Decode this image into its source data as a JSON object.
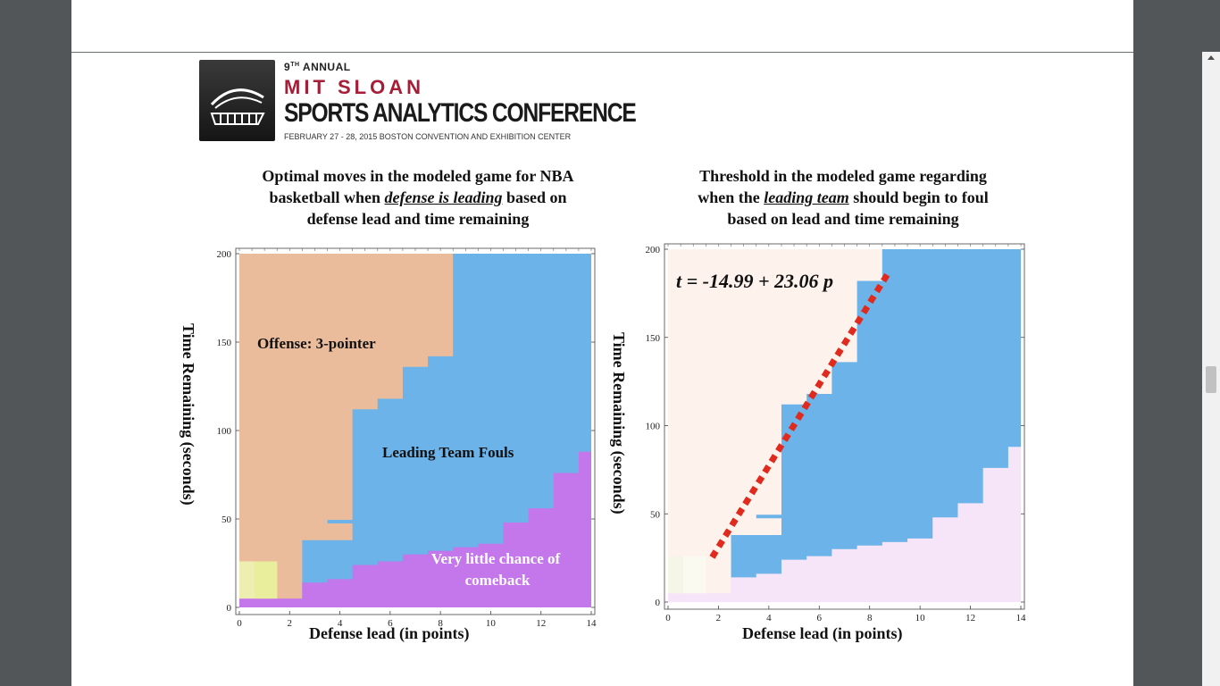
{
  "logo": {
    "edition_num": "9",
    "edition_sup": "TH",
    "edition_word": "ANNUAL",
    "line1": "MIT SLOAN",
    "line2": "SPORTS ANALYTICS CONFERENCE",
    "date_line": "FEBRUARY 27 - 28, 2015 BOSTON CONVENTION AND EXHIBITION CENTER"
  },
  "left_chart": {
    "title_line1": "Optimal moves in the modeled game for NBA",
    "title_line2_pre": "basketball when ",
    "title_line2_em": "defense is leading",
    "title_line2_post": " based on",
    "title_line3": "defense lead and time remaining",
    "region_labels": {
      "offense": "Offense: 3-pointer",
      "fouls": "Leading Team Fouls",
      "comeback1": "Very little chance of",
      "comeback2": "comeback"
    }
  },
  "right_chart": {
    "title_line1": "Threshold in the modeled game regarding",
    "title_line2_pre": "when the ",
    "title_line2_em": "leading team",
    "title_line2_post": " should begin to foul",
    "title_line3": "based on lead and time remaining",
    "equation": "t = -14.99 + 23.06 p"
  },
  "colors": {
    "offense": "#ebbc9c",
    "fouls": "#6cb3ea",
    "comeback": "#c476eb",
    "yellow": "#eeeeb0",
    "right_offense": "#fdf2ec",
    "right_comeback": "#f6e5f8",
    "threshold_line": "#e02a1e"
  },
  "chart_data": [
    {
      "type": "heatmap",
      "xlabel": "Defense lead  (in points)",
      "ylabel": "Time Remaining (seconds)",
      "xlim": [
        0,
        14
      ],
      "ylim": [
        0,
        200
      ],
      "x_ticks": [
        0,
        2,
        4,
        6,
        8,
        10,
        12,
        14
      ],
      "y_ticks": [
        0,
        50,
        100,
        150,
        200
      ],
      "fouls_lower_boundary": [
        [
          0,
          5
        ],
        [
          2.5,
          14
        ],
        [
          3.5,
          16
        ],
        [
          4.5,
          24
        ],
        [
          5.5,
          26
        ],
        [
          6.5,
          30
        ],
        [
          7.5,
          32
        ],
        [
          8.5,
          34
        ],
        [
          9.5,
          36
        ],
        [
          10.5,
          48
        ],
        [
          11.5,
          56
        ],
        [
          12.5,
          76
        ],
        [
          13.5,
          88
        ]
      ],
      "fouls_upper_boundary": [
        [
          2.5,
          38
        ],
        [
          4.5,
          112
        ],
        [
          5.5,
          118
        ],
        [
          6.5,
          136
        ],
        [
          7.5,
          142
        ],
        [
          8.5,
          200
        ]
      ],
      "regions": [
        "Offense: 3-pointer",
        "Leading Team Fouls",
        "Very little chance of comeback"
      ]
    },
    {
      "type": "heatmap",
      "xlabel": "Defense lead  (in points)",
      "ylabel": "Time Remaining (seconds)",
      "xlim": [
        0,
        14
      ],
      "ylim": [
        0,
        200
      ],
      "x_ticks": [
        0,
        2,
        4,
        6,
        8,
        10,
        12,
        14
      ],
      "y_ticks": [
        0,
        50,
        100,
        150,
        200
      ],
      "threshold_line": {
        "intercept": -14.99,
        "slope": 23.06,
        "label": "t = -14.99 + 23.06 p"
      },
      "fouls_upper_boundary": [
        [
          2.5,
          38
        ],
        [
          4.5,
          112
        ],
        [
          5.5,
          118
        ],
        [
          6.5,
          136
        ],
        [
          7.5,
          182
        ],
        [
          8.5,
          200
        ]
      ]
    }
  ]
}
